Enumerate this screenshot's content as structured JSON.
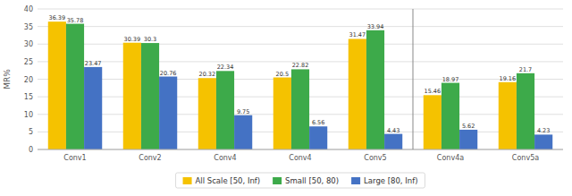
{
  "chart_data": {
    "type": "bar",
    "categories": [
      "Conv1",
      "Conv2",
      "Conv4",
      "Conv4",
      "Conv5",
      "Conv4a",
      "Conv5a"
    ],
    "series": [
      {
        "name": "All Scale [50, Inf)",
        "color": "#F5C200",
        "values": [
          36.39,
          30.39,
          20.32,
          20.5,
          31.47,
          15.46,
          19.16
        ]
      },
      {
        "name": "Small [50, 80)",
        "color": "#3DAA4A",
        "values": [
          35.78,
          30.3,
          22.34,
          22.82,
          33.94,
          18.97,
          21.7
        ]
      },
      {
        "name": "Large [80, Inf)",
        "color": "#4472C4",
        "values": [
          23.47,
          20.76,
          9.75,
          6.56,
          4.43,
          5.62,
          4.23
        ]
      }
    ],
    "ylabel": "MR%",
    "ylim": [
      0,
      40
    ],
    "yticks": [
      0,
      5,
      10,
      15,
      20,
      25,
      30,
      35,
      40
    ],
    "grid": true,
    "data_labels": true,
    "legend": "bottom"
  }
}
